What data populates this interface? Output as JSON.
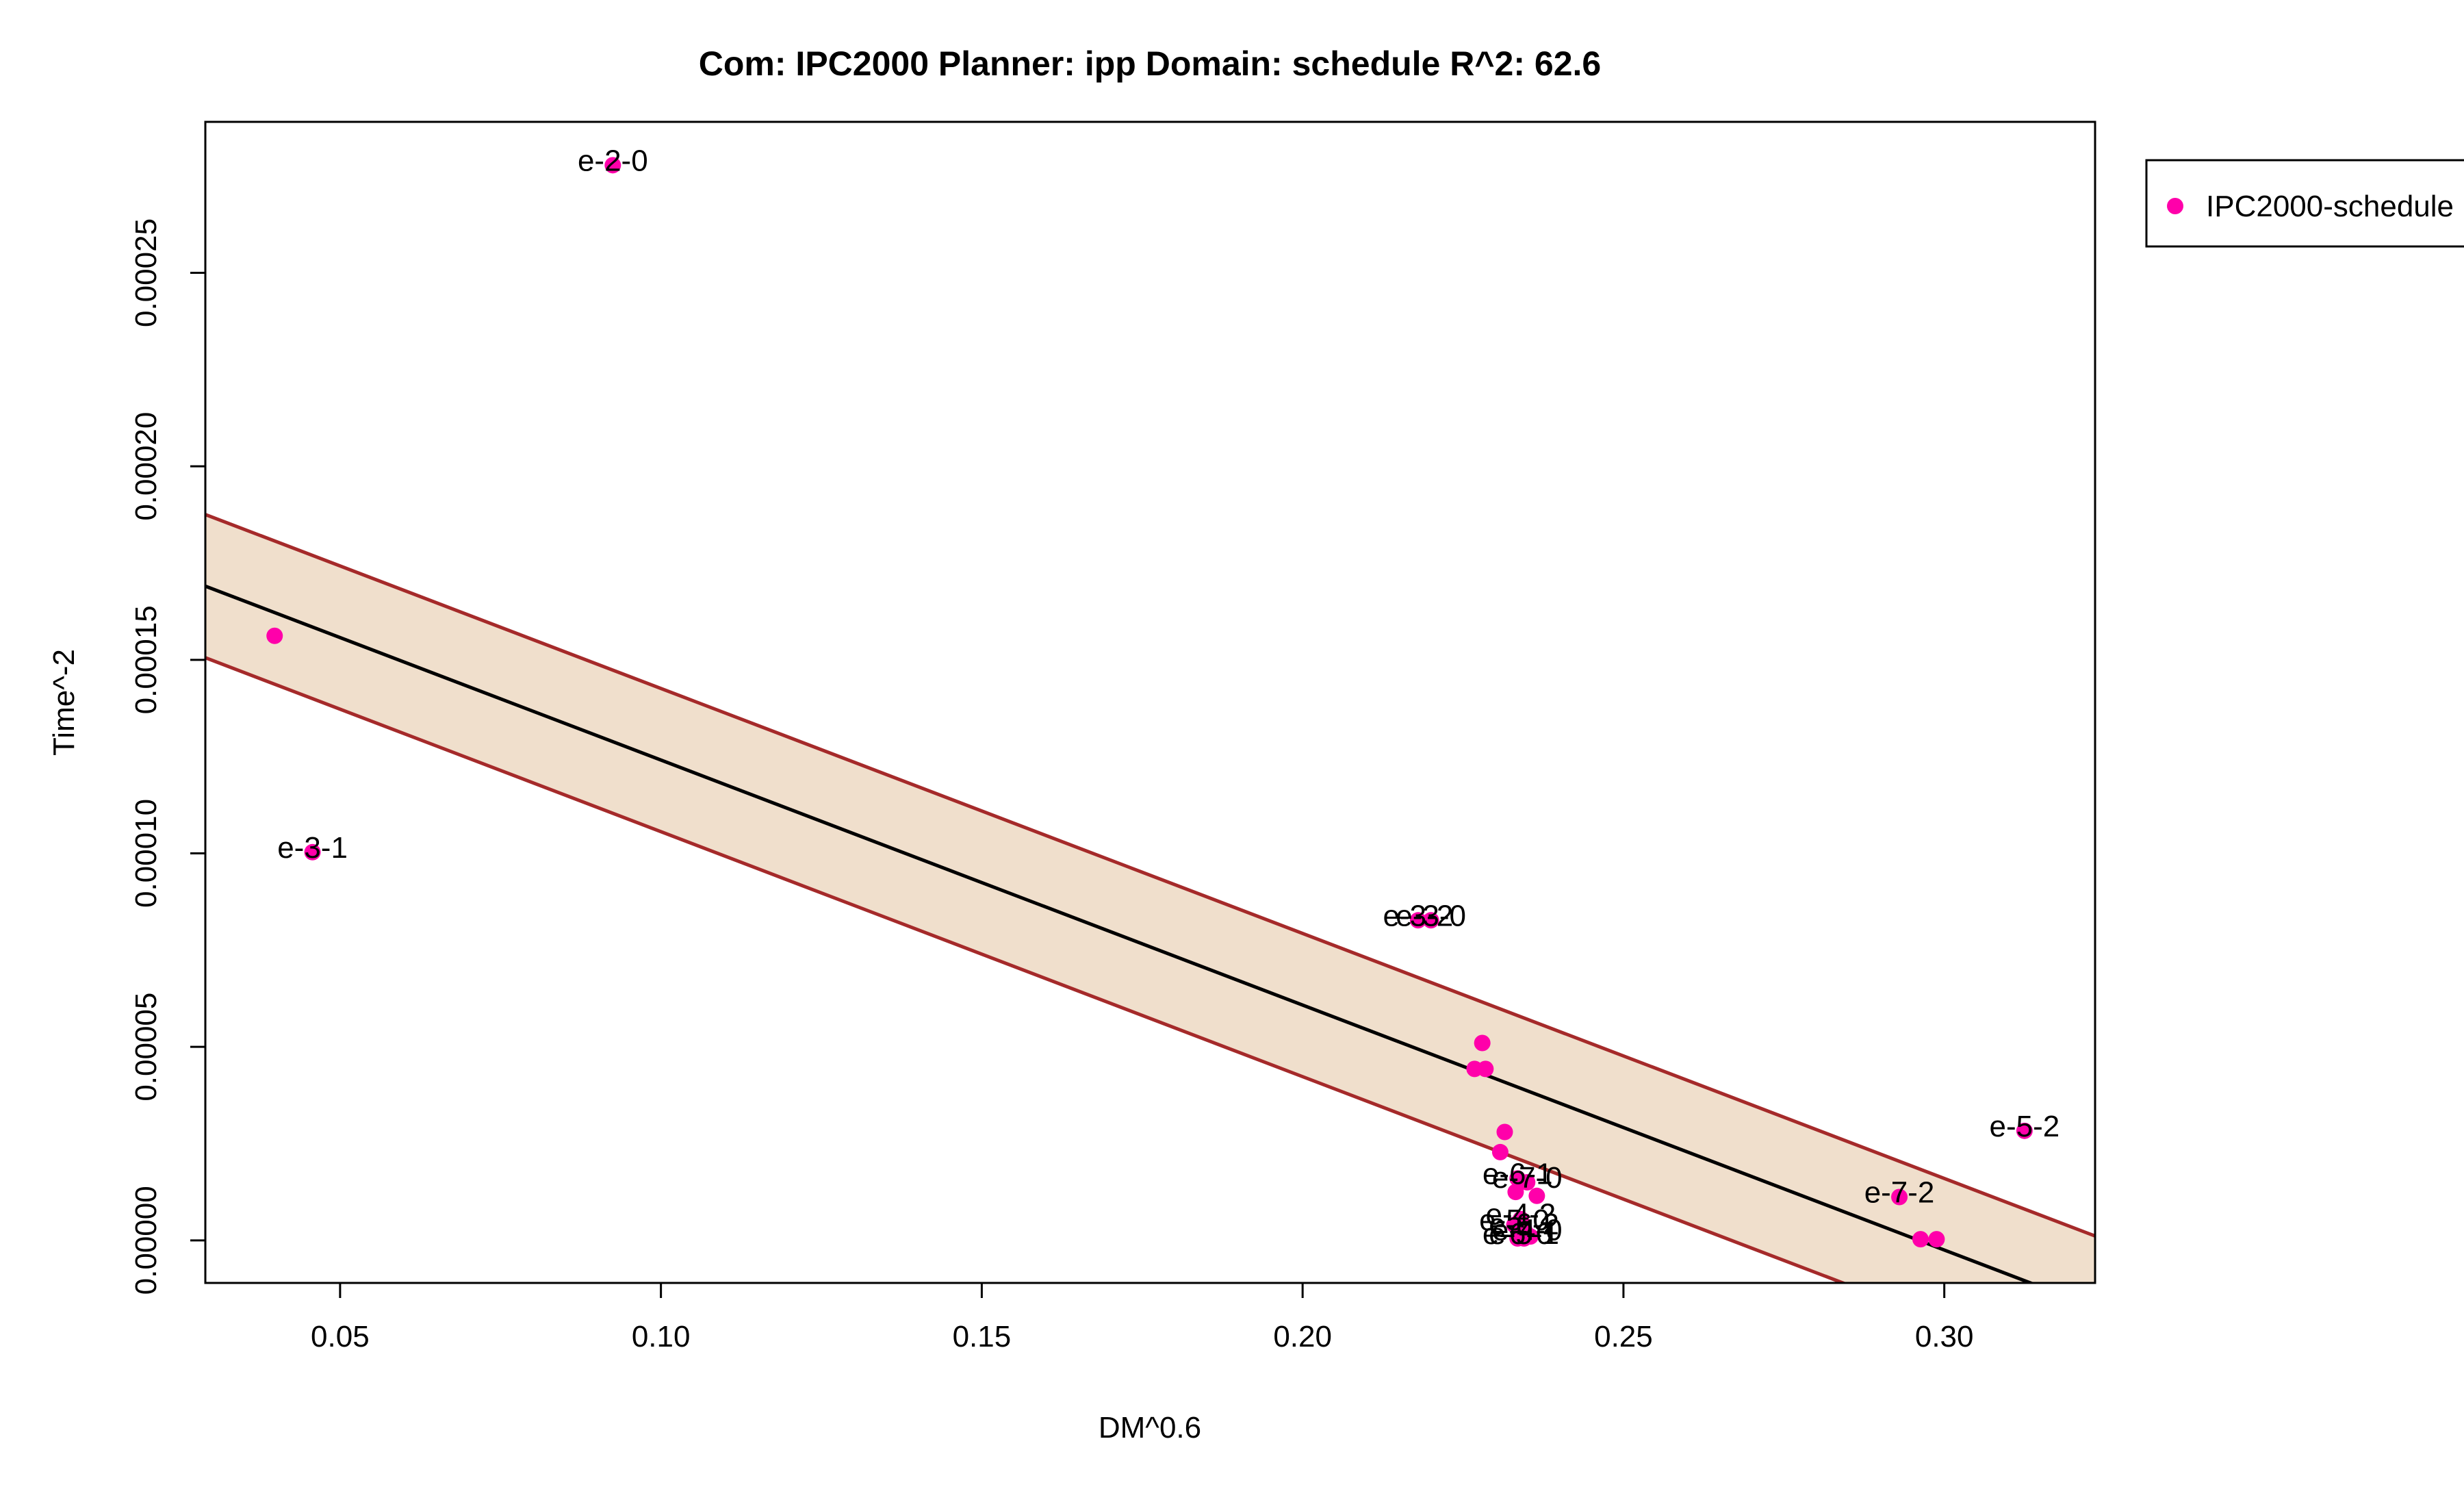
{
  "chart_data": {
    "type": "scatter",
    "title": "Com: IPC2000 Planner: ipp Domain: schedule R^2: 62.6",
    "xlabel": "DM^0.6",
    "ylabel": "Time^-2",
    "xlim": [
      0.029,
      0.3235
    ],
    "ylim": [
      -1.1e-05,
      0.000289
    ],
    "x_ticks": [
      0.05,
      0.1,
      0.15,
      0.2,
      0.25,
      0.3
    ],
    "x_tick_labels": [
      "0.05",
      "0.10",
      "0.15",
      "0.20",
      "0.25",
      "0.30"
    ],
    "y_ticks": [
      0,
      5e-05,
      0.0001,
      0.00015,
      0.0002,
      0.00025
    ],
    "y_tick_labels": [
      "0.00000",
      "0.00005",
      "0.00010",
      "0.00015",
      "0.00020",
      "0.00025"
    ],
    "grid": false,
    "legend": {
      "position": "top-right",
      "entries": [
        "IPC2000-schedule"
      ]
    },
    "colors": {
      "points": "#ff00aa",
      "band_fill": "#f0dfcc",
      "band_line": "#a52a2a",
      "fit_line": "#000000"
    },
    "fit": {
      "intercept": 0.0001874,
      "slope": -0.000633
    },
    "band": {
      "half_width": 1.85e-05
    },
    "series": [
      {
        "name": "IPC2000-schedule",
        "points": [
          {
            "x": 0.0398,
            "y": 0.0001562,
            "label": ""
          },
          {
            "x": 0.0457,
            "y": 0.0001003,
            "label": "e-3-1"
          },
          {
            "x": 0.0925,
            "y": 0.0002778,
            "label": "e-2-0"
          },
          {
            "x": 0.218,
            "y": 8.27e-05,
            "label": "e-3-2"
          },
          {
            "x": 0.22,
            "y": 8.27e-05,
            "label": "e-3-0"
          },
          {
            "x": 0.228,
            "y": 5.1e-05,
            "label": ""
          },
          {
            "x": 0.2268,
            "y": 4.43e-05,
            "label": ""
          },
          {
            "x": 0.2285,
            "y": 4.43e-05,
            "label": ""
          },
          {
            "x": 0.2315,
            "y": 2.8e-05,
            "label": ""
          },
          {
            "x": 0.2308,
            "y": 2.28e-05,
            "label": ""
          },
          {
            "x": 0.2335,
            "y": 1.6e-05,
            "label": "e-6-1"
          },
          {
            "x": 0.235,
            "y": 1.5e-05,
            "label": "e-7-0"
          },
          {
            "x": 0.2365,
            "y": 1.15e-05,
            "label": ""
          },
          {
            "x": 0.2332,
            "y": 1.25e-05,
            "label": ""
          },
          {
            "x": 0.234,
            "y": 5.5e-06,
            "label": "e-4-2"
          },
          {
            "x": 0.233,
            "y": 4e-06,
            "label": "e-5-0"
          },
          {
            "x": 0.2345,
            "y": 3e-06,
            "label": "e-6-2"
          },
          {
            "x": 0.235,
            "y": 1.5e-06,
            "label": "e-4-0"
          },
          {
            "x": 0.2335,
            "y": 5e-07,
            "label": "e-6-0"
          },
          {
            "x": 0.2345,
            "y": 5e-07,
            "label": "e-5-1"
          },
          {
            "x": 0.2355,
            "y": 1e-06,
            "label": ""
          },
          {
            "x": 0.293,
            "y": 1.12e-05,
            "label": "e-7-2"
          },
          {
            "x": 0.2963,
            "y": 3e-07,
            "label": ""
          },
          {
            "x": 0.2988,
            "y": 3e-07,
            "label": ""
          },
          {
            "x": 0.3125,
            "y": 2.83e-05,
            "label": "e-5-2"
          }
        ]
      }
    ]
  }
}
